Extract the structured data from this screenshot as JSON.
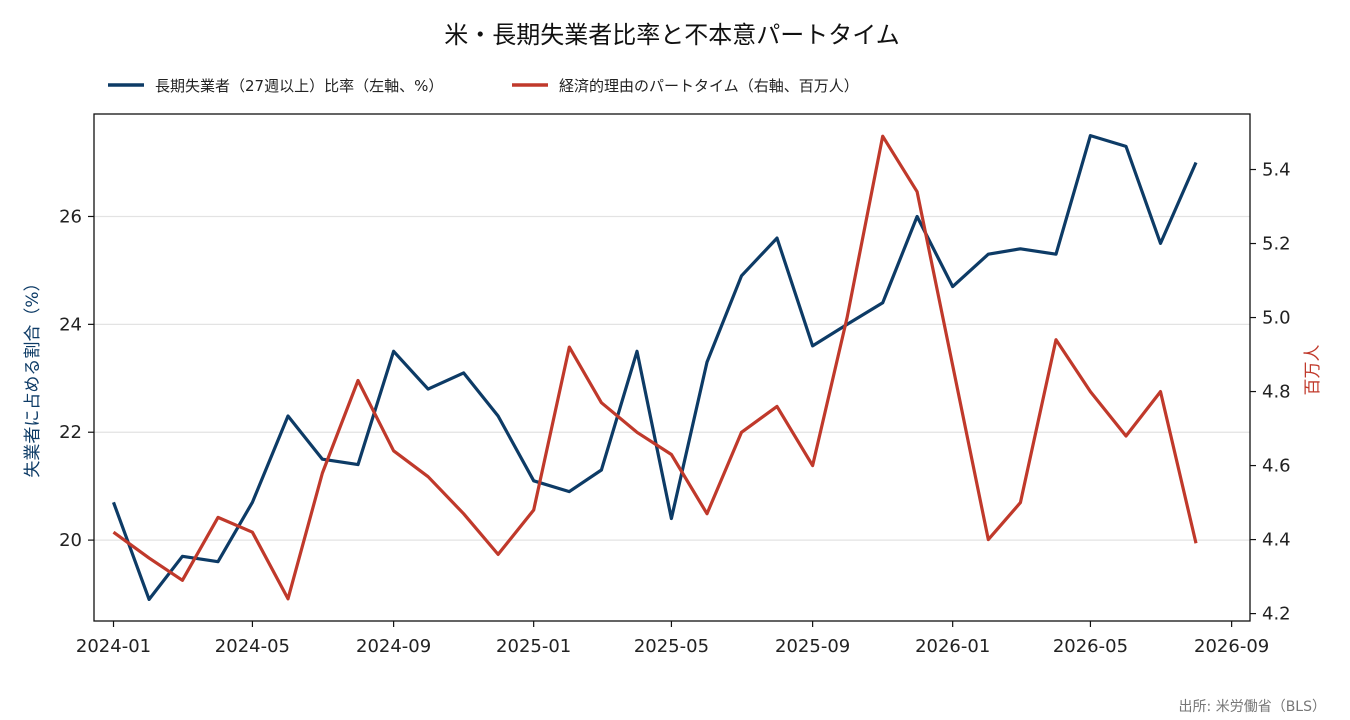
{
  "chart_data": {
    "type": "line",
    "title": "米・長期失業者比率と不本意パートタイム",
    "source": "出所: 米労働省（BLS）",
    "x": [
      "2024-01",
      "2024-02",
      "2024-03",
      "2024-04",
      "2024-05",
      "2024-06",
      "2024-07",
      "2024-08",
      "2024-09",
      "2024-10",
      "2024-11",
      "2024-12",
      "2025-01",
      "2025-02",
      "2025-03",
      "2025-04",
      "2025-05",
      "2025-06",
      "2025-07",
      "2025-08",
      "2025-09",
      "2025-10",
      "2025-11",
      "2025-12",
      "2026-01",
      "2026-02",
      "2026-03",
      "2026-04",
      "2026-05",
      "2026-06",
      "2026-07",
      "2026-08"
    ],
    "x_ticks": [
      "2024-01",
      "2024-05",
      "2024-09",
      "2025-01",
      "2025-05",
      "2025-09",
      "2026-01",
      "2026-05",
      "2026-09"
    ],
    "xlim": [
      "2023-12-15",
      "2026-09-17"
    ],
    "series": [
      {
        "name": "長期失業者（27週以上）比率（左軸、%）",
        "axis": "left",
        "color": "#0d3b66",
        "values": [
          20.7,
          18.9,
          19.7,
          19.6,
          20.7,
          22.3,
          21.5,
          21.4,
          23.5,
          22.8,
          23.1,
          22.3,
          21.1,
          20.9,
          21.3,
          23.5,
          20.4,
          23.3,
          24.9,
          25.6,
          23.6,
          24.0,
          24.4,
          26.0,
          24.7,
          25.3,
          25.4,
          25.3,
          27.5,
          27.3,
          25.5,
          27.0
        ]
      },
      {
        "name": "経済的理由のパートタイム（右軸、百万人）",
        "axis": "right",
        "color": "#c0392b",
        "values": [
          4.42,
          4.35,
          4.29,
          4.46,
          4.42,
          4.24,
          4.58,
          4.83,
          4.64,
          4.57,
          4.47,
          4.36,
          4.48,
          4.92,
          4.77,
          4.69,
          4.63,
          4.47,
          4.69,
          4.76,
          4.6,
          5.0,
          5.49,
          5.34,
          4.87,
          4.4,
          4.5,
          4.94,
          4.8,
          4.68,
          4.8,
          4.39
        ]
      }
    ],
    "y_left": {
      "label": "失業者に占める割合（%）",
      "ticks": [
        "20",
        "22",
        "24",
        "26"
      ],
      "lim": [
        18.5,
        27.9
      ],
      "color": "#0d3b66"
    },
    "y_right": {
      "label": "百万人",
      "ticks": [
        "4.2",
        "4.4",
        "4.6",
        "4.8",
        "5.0",
        "5.2",
        "5.4"
      ],
      "lim": [
        4.18,
        5.55
      ],
      "color": "#c0392b"
    },
    "grid": "horizontal",
    "legend_position": "top-left"
  }
}
